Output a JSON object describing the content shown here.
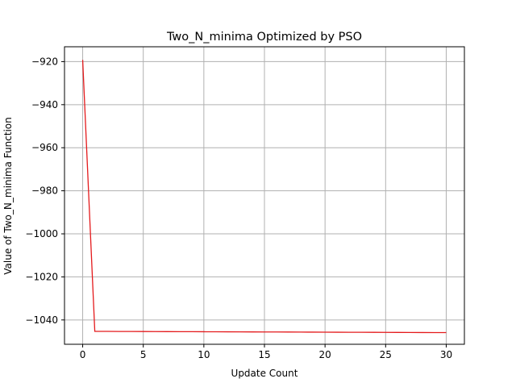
{
  "chart_data": {
    "type": "line",
    "title": "Two_N_minima Optimized by PSO",
    "xlabel": "Update Count",
    "ylabel": "Value of Two_N_minima Function",
    "xlim": [
      -1.5,
      31.5
    ],
    "ylim": [
      -1051.3,
      -913.1
    ],
    "xticks": [
      0,
      5,
      10,
      15,
      20,
      25,
      30
    ],
    "xtick_labels": [
      "0",
      "5",
      "10",
      "15",
      "20",
      "25",
      "30"
    ],
    "yticks": [
      -920,
      -940,
      -960,
      -980,
      -1000,
      -1020,
      -1040
    ],
    "ytick_labels": [
      "−920",
      "−940",
      "−960",
      "−980",
      "−1000",
      "−1020",
      "−1040"
    ],
    "grid": true,
    "series": [
      {
        "color": "#e41a1c",
        "x": [
          0,
          1,
          2,
          3,
          4,
          5,
          6,
          7,
          8,
          9,
          10,
          11,
          12,
          13,
          14,
          15,
          16,
          17,
          18,
          19,
          20,
          21,
          22,
          23,
          24,
          25,
          26,
          27,
          28,
          29,
          30
        ],
        "y": [
          -919.2,
          -1045.3,
          -1045.32,
          -1045.34,
          -1045.36,
          -1045.38,
          -1045.4,
          -1045.42,
          -1045.44,
          -1045.46,
          -1045.48,
          -1045.5,
          -1045.52,
          -1045.54,
          -1045.56,
          -1045.58,
          -1045.6,
          -1045.62,
          -1045.64,
          -1045.66,
          -1045.68,
          -1045.7,
          -1045.72,
          -1045.74,
          -1045.76,
          -1045.78,
          -1045.8,
          -1045.82,
          -1045.84,
          -1045.86,
          -1045.88
        ]
      }
    ]
  }
}
